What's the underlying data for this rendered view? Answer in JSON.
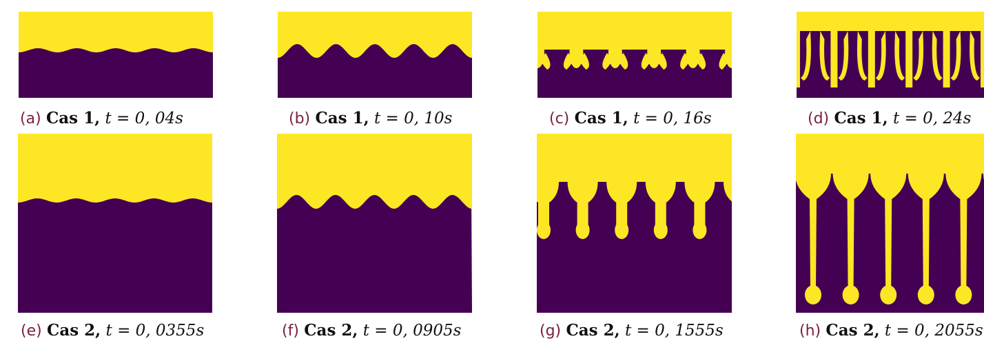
{
  "colors": {
    "fluid_top": "#fde725",
    "fluid_bottom": "#440154",
    "interface": "#2a9d8f",
    "label": "#7a1f3d"
  },
  "panels": [
    {
      "label": "(a)",
      "case": "Cas 1,",
      "equation": "t = 0, 04s"
    },
    {
      "label": "(b)",
      "case": "Cas 1,",
      "equation": "t = 0, 10s"
    },
    {
      "label": "(c)",
      "case": "Cas 1,",
      "equation": "t = 0, 16s"
    },
    {
      "label": "(d)",
      "case": "Cas 1,",
      "equation": "t = 0, 24s"
    },
    {
      "label": "(e)",
      "case": "Cas 2,",
      "equation": "t = 0, 0355s"
    },
    {
      "label": "(f)",
      "case": "Cas 2,",
      "equation": "t = 0, 0905s"
    },
    {
      "label": "(g)",
      "case": "Cas 2,",
      "equation": "t = 0, 1555s"
    },
    {
      "label": "(h)",
      "case": "Cas 2,",
      "equation": "t = 0, 2055s"
    }
  ]
}
